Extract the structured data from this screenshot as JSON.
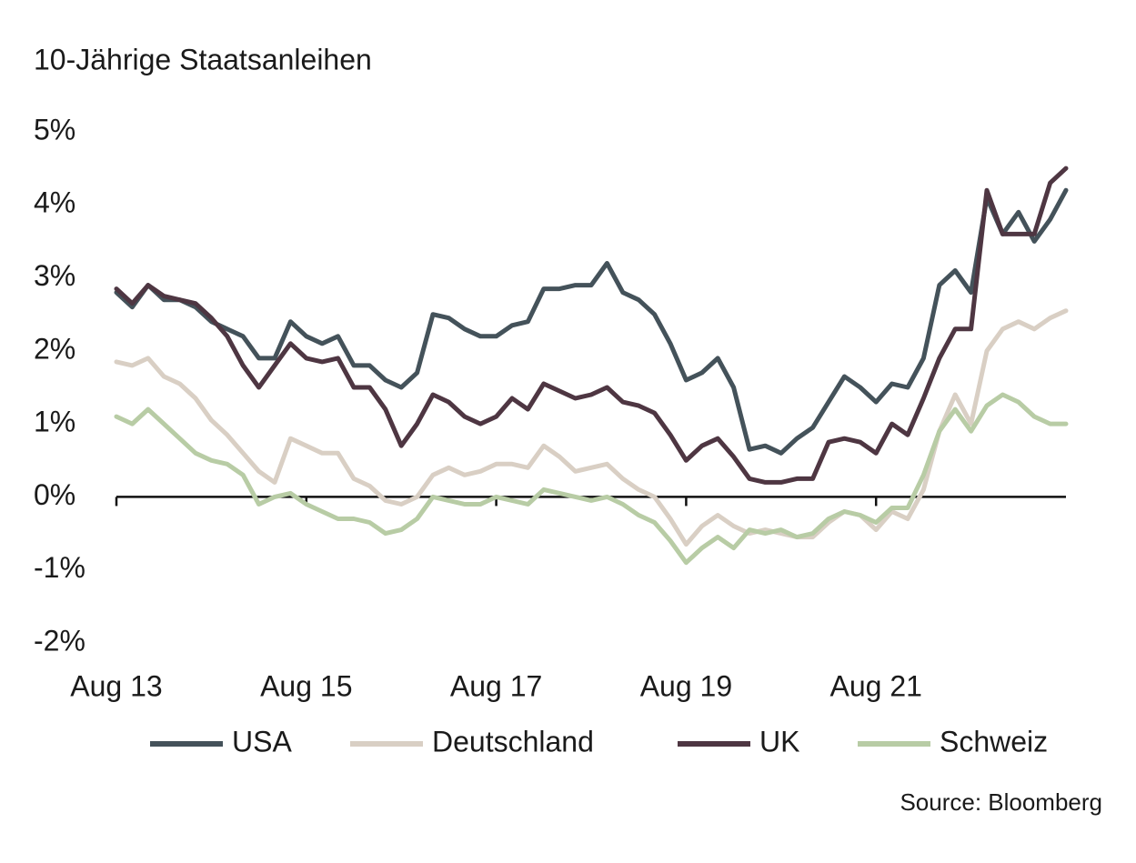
{
  "chart_data": {
    "type": "line",
    "title": "10-Jährige Staatsanleihen",
    "source": "Source: Bloomberg",
    "categories": [
      "Aug 13",
      null,
      null,
      null,
      null,
      null,
      null,
      null,
      null,
      null,
      null,
      null,
      "Aug 15",
      null,
      null,
      null,
      null,
      null,
      null,
      null,
      null,
      null,
      null,
      null,
      "Aug 17",
      null,
      null,
      null,
      null,
      null,
      null,
      null,
      null,
      null,
      null,
      null,
      "Aug 19",
      null,
      null,
      null,
      null,
      null,
      null,
      null,
      null,
      null,
      null,
      null,
      "Aug 21",
      null,
      null,
      null,
      null,
      null,
      null,
      null,
      null,
      null,
      null,
      null,
      null
    ],
    "ylim": [
      -2,
      5
    ],
    "yticks": [
      {
        "value": 5,
        "label": "5%"
      },
      {
        "value": 4,
        "label": "4%"
      },
      {
        "value": 3,
        "label": "3%"
      },
      {
        "value": 2,
        "label": "2%"
      },
      {
        "value": 1,
        "label": "1%"
      },
      {
        "value": 0,
        "label": "0%"
      },
      {
        "value": -1,
        "label": "-1%"
      },
      {
        "value": -2,
        "label": "-2%"
      }
    ],
    "grid": false,
    "series": [
      {
        "name": "USA",
        "color": "#44525a",
        "values": [
          2.8,
          2.6,
          2.9,
          2.7,
          2.7,
          2.6,
          2.4,
          2.3,
          2.2,
          1.9,
          1.9,
          2.4,
          2.2,
          2.1,
          2.2,
          1.8,
          1.8,
          1.6,
          1.5,
          1.7,
          2.5,
          2.45,
          2.3,
          2.2,
          2.2,
          2.35,
          2.4,
          2.85,
          2.85,
          2.9,
          2.9,
          3.2,
          2.8,
          2.7,
          2.5,
          2.1,
          1.6,
          1.7,
          1.9,
          1.5,
          0.65,
          0.7,
          0.6,
          0.8,
          0.95,
          1.3,
          1.65,
          1.5,
          1.3,
          1.55,
          1.5,
          1.9,
          2.9,
          3.1,
          2.8,
          4.1,
          3.6,
          3.9,
          3.5,
          3.8,
          4.2
        ]
      },
      {
        "name": "Deutschland",
        "color": "#d9cfc4",
        "values": [
          1.85,
          1.8,
          1.9,
          1.65,
          1.55,
          1.35,
          1.05,
          0.85,
          0.6,
          0.35,
          0.2,
          0.8,
          0.7,
          0.6,
          0.6,
          0.25,
          0.15,
          -0.05,
          -0.1,
          0.0,
          0.3,
          0.4,
          0.3,
          0.35,
          0.45,
          0.45,
          0.4,
          0.7,
          0.55,
          0.35,
          0.4,
          0.45,
          0.25,
          0.1,
          0.0,
          -0.3,
          -0.65,
          -0.4,
          -0.25,
          -0.4,
          -0.5,
          -0.45,
          -0.5,
          -0.55,
          -0.55,
          -0.35,
          -0.2,
          -0.25,
          -0.45,
          -0.2,
          -0.3,
          0.1,
          0.9,
          1.4,
          1.0,
          2.0,
          2.3,
          2.4,
          2.3,
          2.45,
          2.55
        ]
      },
      {
        "name": "UK",
        "color": "#4e3642",
        "values": [
          2.85,
          2.65,
          2.9,
          2.75,
          2.7,
          2.65,
          2.45,
          2.2,
          1.8,
          1.5,
          1.8,
          2.1,
          1.9,
          1.85,
          1.9,
          1.5,
          1.5,
          1.2,
          0.7,
          1.0,
          1.4,
          1.3,
          1.1,
          1.0,
          1.1,
          1.35,
          1.2,
          1.55,
          1.45,
          1.35,
          1.4,
          1.5,
          1.3,
          1.25,
          1.15,
          0.85,
          0.5,
          0.7,
          0.8,
          0.55,
          0.25,
          0.2,
          0.2,
          0.25,
          0.25,
          0.75,
          0.8,
          0.75,
          0.6,
          1.0,
          0.85,
          1.35,
          1.9,
          2.3,
          2.3,
          4.2,
          3.6,
          3.6,
          3.6,
          4.3,
          4.5
        ]
      },
      {
        "name": "Schweiz",
        "color": "#b8cca5",
        "values": [
          1.1,
          1.0,
          1.2,
          1.0,
          0.8,
          0.6,
          0.5,
          0.45,
          0.3,
          -0.1,
          0.0,
          0.05,
          -0.1,
          -0.2,
          -0.3,
          -0.3,
          -0.35,
          -0.5,
          -0.45,
          -0.3,
          0.0,
          -0.05,
          -0.1,
          -0.1,
          0.0,
          -0.05,
          -0.1,
          0.1,
          0.05,
          0.0,
          -0.05,
          0.0,
          -0.1,
          -0.25,
          -0.35,
          -0.6,
          -0.9,
          -0.7,
          -0.55,
          -0.7,
          -0.45,
          -0.5,
          -0.45,
          -0.55,
          -0.5,
          -0.3,
          -0.2,
          -0.25,
          -0.35,
          -0.15,
          -0.15,
          0.3,
          0.9,
          1.2,
          0.9,
          1.25,
          1.4,
          1.3,
          1.1,
          1.0,
          1.0
        ]
      }
    ]
  }
}
